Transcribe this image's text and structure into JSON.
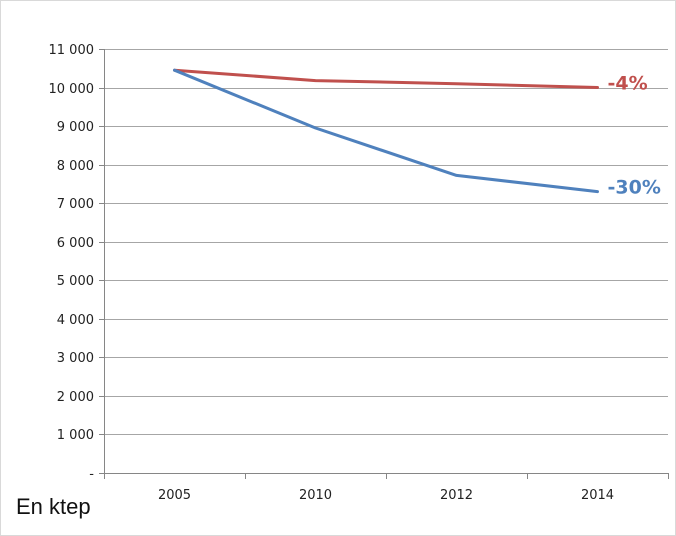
{
  "unit_label": "En ktep",
  "chart_data": {
    "type": "line",
    "x": [
      "2005",
      "2010",
      "2012",
      "2014"
    ],
    "yticks": [
      0,
      1000,
      2000,
      3000,
      4000,
      5000,
      6000,
      7000,
      8000,
      9000,
      10000,
      11000
    ],
    "ytick_labels": [
      "-",
      "1 000",
      "2 000",
      "3 000",
      "4 000",
      "5 000",
      "6 000",
      "7 000",
      "8 000",
      "9 000",
      "10 000",
      "11 000"
    ],
    "ylim": [
      0,
      11000
    ],
    "grid": true,
    "series": [
      {
        "values": [
          10450,
          10180,
          10100,
          10000
        ],
        "color": "#c0504d"
      },
      {
        "values": [
          10450,
          8950,
          7720,
          7300
        ],
        "color": "#4f81bd"
      }
    ],
    "annotations": [
      {
        "text": "-4%",
        "color": "#c0504d",
        "series": 0
      },
      {
        "text": "-30%",
        "color": "#4f81bd",
        "series": 1
      }
    ]
  }
}
